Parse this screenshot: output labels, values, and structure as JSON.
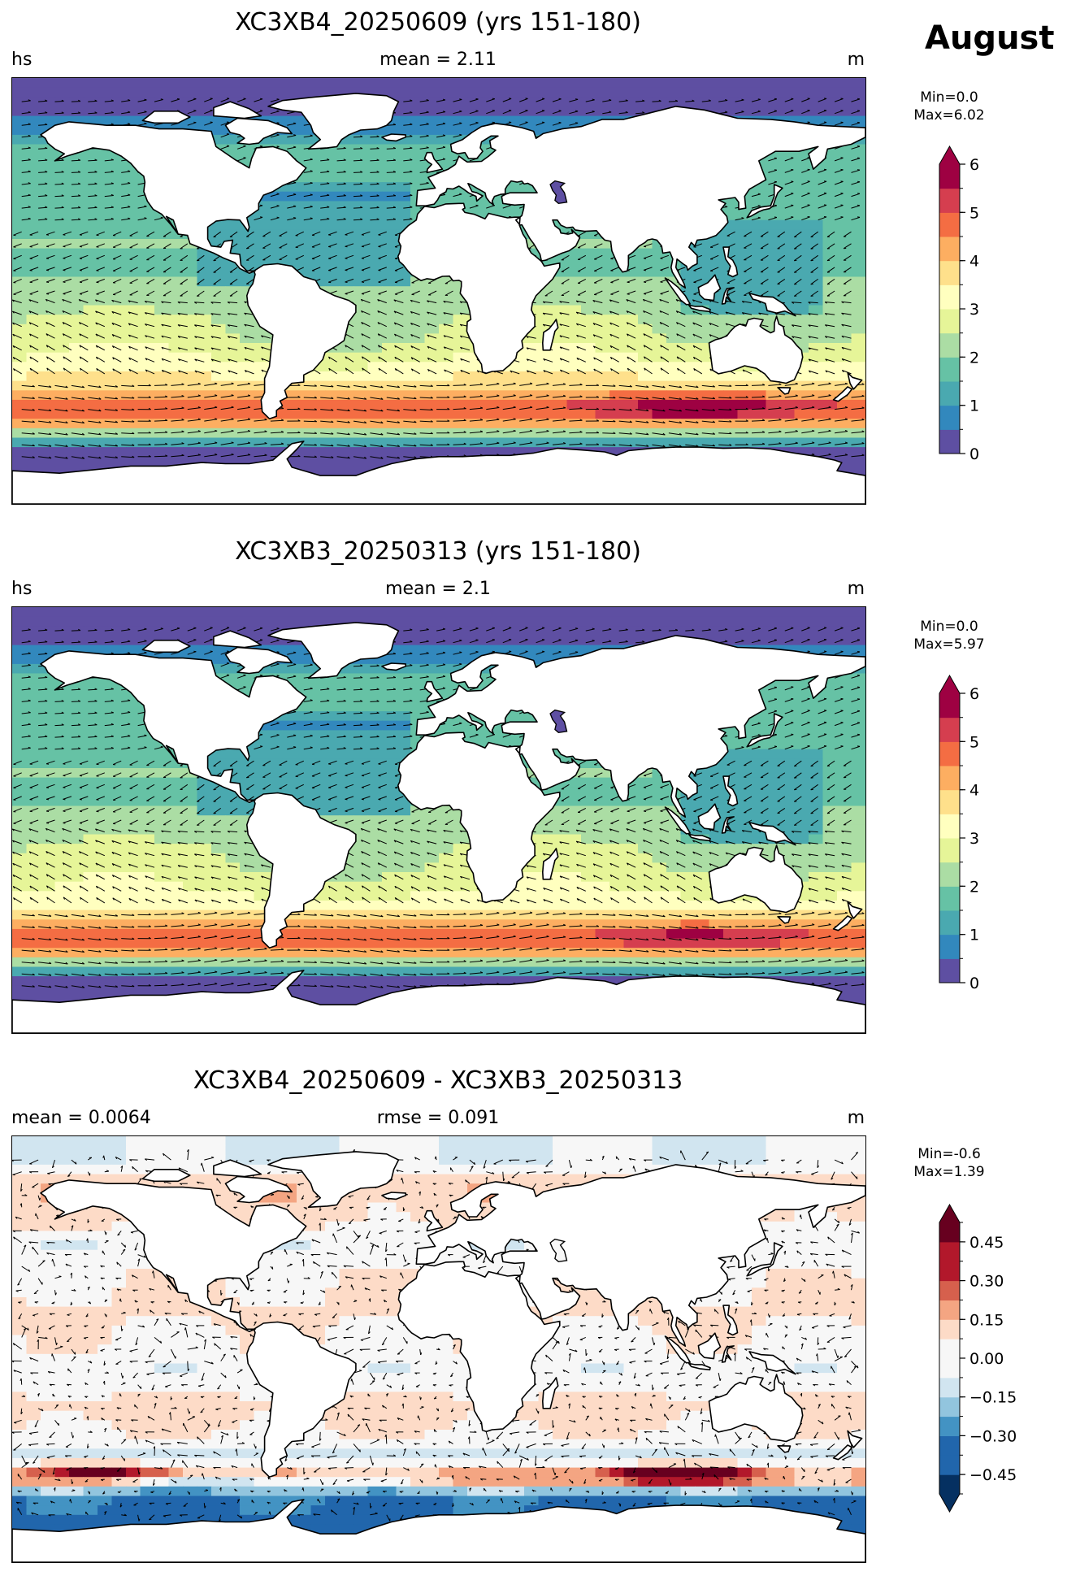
{
  "figure": {
    "month_label": "August",
    "colors": {
      "spectral": [
        "#5e4fa2",
        "#3288bd",
        "#4aa9b0",
        "#66c2a5",
        "#abdda4",
        "#e6f598",
        "#ffffbf",
        "#fee08b",
        "#fdae61",
        "#f46d43",
        "#d53e4f",
        "#9e0142"
      ],
      "diverging": [
        "#053061",
        "#2166ac",
        "#4393c3",
        "#92c5de",
        "#d1e5f0",
        "#f7f7f7",
        "#fddbc7",
        "#f4a582",
        "#d6604d",
        "#b2182b",
        "#67001f"
      ],
      "land": "#ffffff",
      "coast": "#000000"
    }
  },
  "chart_data": [
    {
      "type": "heatmap",
      "title": "XC3XB4_20250609 (yrs 151-180)",
      "left_label": "hs",
      "center_label": "mean = 2.11",
      "right_label": "m",
      "colorbar": {
        "min_text": "Min=0.0",
        "max_text": "Max=6.02",
        "range": [
          0,
          6
        ],
        "ticks": [
          0,
          1,
          2,
          3,
          4,
          5,
          6
        ],
        "tick_labels": [
          "0",
          "1",
          "2",
          "3",
          "4",
          "5",
          "6"
        ],
        "levels": 12,
        "extend": "max",
        "cmap": "spectral"
      },
      "field": {
        "kind": "hs",
        "band_values": [
          [
            -80,
            0.2
          ],
          [
            -70,
            0.5
          ],
          [
            -62,
            1.5
          ],
          [
            -55,
            4.6
          ],
          [
            -48,
            4.9
          ],
          [
            -40,
            3.8
          ],
          [
            -30,
            3.0
          ],
          [
            -20,
            2.6
          ],
          [
            -10,
            2.4
          ],
          [
            0,
            2.1
          ],
          [
            10,
            1.9
          ],
          [
            20,
            2.0
          ],
          [
            30,
            1.8
          ],
          [
            40,
            1.6
          ],
          [
            50,
            1.9
          ],
          [
            60,
            1.6
          ],
          [
            70,
            0.6
          ],
          [
            80,
            0.2
          ]
        ],
        "peak": {
          "lon": 110,
          "lat": -50,
          "value": 6.0
        }
      }
    },
    {
      "type": "heatmap",
      "title": "XC3XB3_20250313 (yrs 151-180)",
      "left_label": "hs",
      "center_label": "mean = 2.1",
      "right_label": "m",
      "colorbar": {
        "min_text": "Min=0.0",
        "max_text": "Max=5.97",
        "range": [
          0,
          6
        ],
        "ticks": [
          0,
          1,
          2,
          3,
          4,
          5,
          6
        ],
        "tick_labels": [
          "0",
          "1",
          "2",
          "3",
          "4",
          "5",
          "6"
        ],
        "levels": 12,
        "extend": "max",
        "cmap": "spectral"
      },
      "field": {
        "kind": "hs",
        "band_values": [
          [
            -80,
            0.2
          ],
          [
            -70,
            0.5
          ],
          [
            -62,
            1.5
          ],
          [
            -55,
            4.5
          ],
          [
            -48,
            4.8
          ],
          [
            -40,
            3.7
          ],
          [
            -30,
            2.9
          ],
          [
            -20,
            2.6
          ],
          [
            -10,
            2.4
          ],
          [
            0,
            2.1
          ],
          [
            10,
            1.9
          ],
          [
            20,
            2.0
          ],
          [
            30,
            1.8
          ],
          [
            40,
            1.6
          ],
          [
            50,
            1.9
          ],
          [
            60,
            1.6
          ],
          [
            70,
            0.6
          ],
          [
            80,
            0.2
          ]
        ],
        "peak": {
          "lon": 110,
          "lat": -50,
          "value": 5.8
        }
      }
    },
    {
      "type": "heatmap",
      "title": "XC3XB4_20250609 - XC3XB3_20250313",
      "left_label": "mean = 0.0064",
      "center_label": "rmse = 0.091",
      "right_label": "m",
      "colorbar": {
        "min_text": "Min=-0.6",
        "max_text": "Max=1.39",
        "range": [
          -0.525,
          0.525
        ],
        "ticks": [
          -0.45,
          -0.3,
          -0.15,
          0.0,
          0.15,
          0.3,
          0.45
        ],
        "tick_labels": [
          "−0.45",
          "−0.30",
          "−0.15",
          "0.00",
          "0.15",
          "0.30",
          "0.45"
        ],
        "levels": 14,
        "extend": "both",
        "cmap": "diverging"
      },
      "field": {
        "kind": "diff",
        "band_values": [
          [
            -62,
            -0.35
          ],
          [
            -55,
            0.25
          ],
          [
            -45,
            -0.08
          ],
          [
            -35,
            0.05
          ],
          [
            -25,
            0.1
          ],
          [
            -10,
            -0.03
          ],
          [
            0,
            0.02
          ],
          [
            15,
            0.06
          ],
          [
            30,
            0.04
          ],
          [
            45,
            -0.05
          ],
          [
            55,
            0.08
          ],
          [
            70,
            0.12
          ],
          [
            80,
            -0.05
          ]
        ],
        "peak": {
          "lon": 100,
          "lat": -53,
          "value": 0.55
        }
      }
    }
  ]
}
